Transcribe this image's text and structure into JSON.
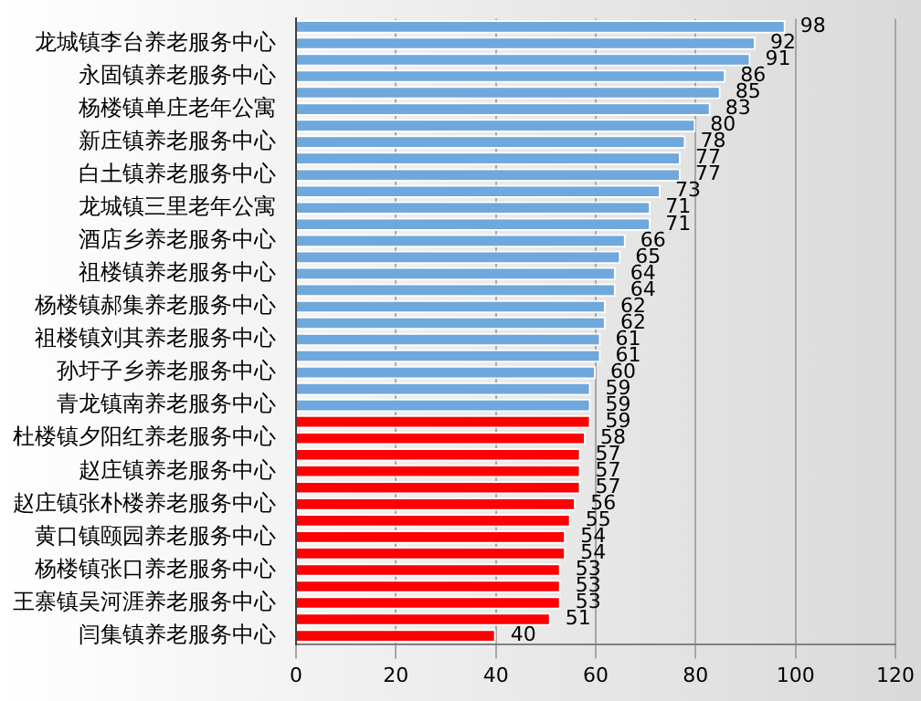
{
  "chart_data": {
    "type": "bar",
    "orientation": "horizontal",
    "categories": [
      null,
      "龙城镇李台养老服务中心",
      null,
      "永固镇养老服务中心",
      null,
      "杨楼镇单庄老年公寓",
      null,
      "新庄镇养老服务中心",
      null,
      "白土镇养老服务中心",
      null,
      "龙城镇三里老年公寓",
      null,
      "酒店乡养老服务中心",
      null,
      "祖楼镇养老服务中心",
      null,
      "杨楼镇郝集养老服务中心",
      null,
      "祖楼镇刘其养老服务中心",
      null,
      "孙圩子乡养老服务中心",
      null,
      "青龙镇南养老服务中心",
      null,
      "杜楼镇夕阳红养老服务中心",
      null,
      "赵庄镇养老服务中心",
      null,
      "赵庄镇张朴楼养老服务中心",
      null,
      "黄口镇颐园养老服务中心",
      null,
      "杨楼镇张口养老服务中心",
      null,
      "王寨镇吴河涯养老服务中心",
      null,
      "闫集镇养老服务中心"
    ],
    "values": [
      98,
      92,
      91,
      86,
      85,
      83,
      80,
      78,
      77,
      77,
      73,
      71,
      71,
      66,
      65,
      64,
      64,
      62,
      62,
      61,
      61,
      60,
      59,
      59,
      59,
      58,
      57,
      57,
      57,
      56,
      55,
      54,
      54,
      53,
      53,
      53,
      51,
      40
    ],
    "colors": [
      "#6fa8dc",
      "#6fa8dc",
      "#6fa8dc",
      "#6fa8dc",
      "#6fa8dc",
      "#6fa8dc",
      "#6fa8dc",
      "#6fa8dc",
      "#6fa8dc",
      "#6fa8dc",
      "#6fa8dc",
      "#6fa8dc",
      "#6fa8dc",
      "#6fa8dc",
      "#6fa8dc",
      "#6fa8dc",
      "#6fa8dc",
      "#6fa8dc",
      "#6fa8dc",
      "#6fa8dc",
      "#6fa8dc",
      "#6fa8dc",
      "#6fa8dc",
      "#6fa8dc",
      "#ff0000",
      "#ff0000",
      "#ff0000",
      "#ff0000",
      "#ff0000",
      "#ff0000",
      "#ff0000",
      "#ff0000",
      "#ff0000",
      "#ff0000",
      "#ff0000",
      "#ff0000",
      "#ff0000",
      "#ff0000"
    ],
    "xlim": [
      0,
      120
    ],
    "xticks": [
      0,
      20,
      40,
      60,
      80,
      100,
      120
    ],
    "grid": "x",
    "data_labels": true
  }
}
